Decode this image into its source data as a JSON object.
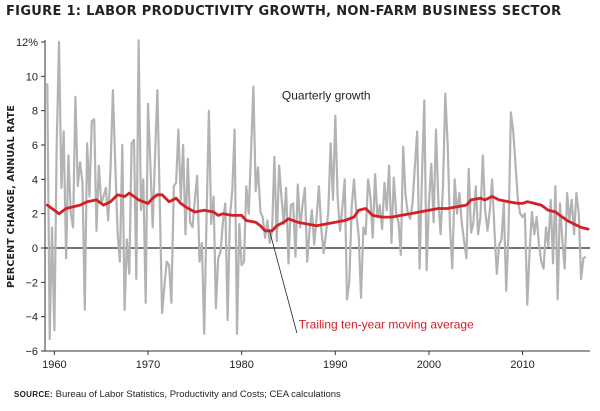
{
  "title": "FIGURE 1: LABOR PRODUCTIVITY GROWTH, NON-FARM BUSINESS SECTOR",
  "source_label": "SOURCE:",
  "source_text": "Bureau of Labor Statistics, Productivity and Costs; CEA calculations",
  "chart_data": {
    "type": "line",
    "title": "FIGURE 1: LABOR PRODUCTIVITY GROWTH, NON-FARM BUSINESS SECTOR",
    "xlabel": "",
    "ylabel": "PERCENT CHANGE, ANNUAL RATE",
    "xlim": [
      1959.0,
      2017.2
    ],
    "ylim": [
      -6,
      12
    ],
    "x_ticks": [
      1960,
      1970,
      1980,
      1990,
      2000,
      2010
    ],
    "x_tick_labels": [
      "1960",
      "1970",
      "1980",
      "1990",
      "2000",
      "2010"
    ],
    "y_ticks": [
      -6,
      -4,
      -2,
      0,
      2,
      4,
      6,
      8,
      10,
      12
    ],
    "y_tick_labels": [
      "−6",
      "−4",
      "−2",
      "0",
      "2",
      "4",
      "6",
      "8",
      "10",
      "12%"
    ],
    "grid": false,
    "zero_line": true,
    "series": [
      {
        "name": "Quarterly growth",
        "color": "#b3b3b3",
        "x_start": 1959.25,
        "x_step": 0.25,
        "values": [
          9.6,
          -5.3,
          1.2,
          -4.8,
          6.0,
          12.0,
          3.5,
          6.8,
          -0.6,
          5.4,
          2.0,
          1.2,
          8.8,
          3.6,
          5.0,
          3.8,
          -3.6,
          6.1,
          3.0,
          7.4,
          7.5,
          1.0,
          4.8,
          2.6,
          3.0,
          3.5,
          1.6,
          4.6,
          9.2,
          5.0,
          0.9,
          -0.8,
          6.0,
          -3.6,
          0.5,
          -1.5,
          6.1,
          6.3,
          -1.8,
          12.1,
          2.2,
          4.0,
          -3.2,
          8.4,
          5.0,
          1.2,
          5.3,
          9.2,
          2.8,
          -3.8,
          -2.2,
          -0.8,
          -1.0,
          -3.2,
          3.6,
          3.8,
          6.9,
          2.8,
          6.0,
          0.8,
          5.2,
          1.5,
          1.2,
          2.8,
          4.2,
          -0.8,
          0.3,
          -5.0,
          1.6,
          8.0,
          1.4,
          3.0,
          -3.5,
          -0.6,
          -0.2,
          1.5,
          2.6,
          -4.2,
          1.8,
          3.4,
          6.9,
          -5.0,
          1.4,
          -1.0,
          -0.8,
          3.6,
          2.0,
          5.5,
          9.4,
          3.3,
          4.7,
          2.1,
          1.8,
          0.6,
          1.6,
          0.3,
          1.0,
          5.3,
          0.4,
          4.8,
          3.0,
          1.4,
          3.5,
          -0.9,
          2.5,
          2.6,
          -0.5,
          3.7,
          1.2,
          2.5,
          3.5,
          -0.8,
          1.0,
          2.2,
          0.2,
          1.8,
          3.6,
          1.2,
          -0.3,
          0.8,
          2.1,
          6.1,
          2.8,
          7.7,
          3.0,
          1.0,
          2.3,
          4.0,
          -3.0,
          -2.0,
          2.4,
          4.0,
          2.0,
          0.7,
          -2.9,
          1.2,
          0.8,
          4.0,
          3.0,
          0.6,
          4.3,
          1.8,
          2.5,
          1.1,
          3.8,
          2.2,
          4.8,
          0.3,
          4.1,
          2.0,
          1.5,
          -0.4,
          5.9,
          3.1,
          2.0,
          1.7,
          2.6,
          4.8,
          6.8,
          -1.2,
          4.0,
          8.6,
          -1.3,
          2.6,
          4.9,
          1.5,
          6.9,
          2.8,
          0.8,
          3.6,
          9.0,
          6.0,
          1.2,
          -1.2,
          4.0,
          2.0,
          3.2,
          1.5,
          0.4,
          -0.6,
          4.6,
          0.9,
          1.5,
          3.6,
          0.8,
          1.8,
          5.4,
          2.2,
          1.0,
          2.2,
          4.0,
          1.0,
          -1.5,
          0.2,
          0.5,
          2.6,
          -2.5,
          0.9,
          7.9,
          6.8,
          4.8,
          2.8,
          2.0,
          1.8,
          2.0,
          -3.3,
          -0.2,
          2.1,
          0.8,
          1.8,
          0.2,
          -0.8,
          -1.2,
          1.2,
          0.1,
          2.8,
          -0.9,
          3.6,
          -3.0,
          2.6,
          0.4,
          -1.2,
          3.2,
          1.6,
          2.8,
          0.8,
          3.2,
          2.0,
          -1.8,
          -0.6,
          -0.5
        ]
      },
      {
        "name": "Trailing ten-year moving average",
        "color": "#d32027",
        "points": [
          [
            1959.25,
            2.5
          ],
          [
            1960.0,
            2.2
          ],
          [
            1960.5,
            2.0
          ],
          [
            1961.25,
            2.3
          ],
          [
            1962.0,
            2.4
          ],
          [
            1962.75,
            2.5
          ],
          [
            1963.5,
            2.7
          ],
          [
            1964.5,
            2.8
          ],
          [
            1965.25,
            2.5
          ],
          [
            1966.0,
            2.7
          ],
          [
            1966.75,
            3.1
          ],
          [
            1967.5,
            3.0
          ],
          [
            1968.0,
            3.2
          ],
          [
            1968.5,
            3.0
          ],
          [
            1969.0,
            2.8
          ],
          [
            1969.5,
            2.7
          ],
          [
            1970.0,
            2.6
          ],
          [
            1970.5,
            2.9
          ],
          [
            1971.0,
            3.1
          ],
          [
            1971.5,
            3.1
          ],
          [
            1972.25,
            2.7
          ],
          [
            1973.0,
            2.9
          ],
          [
            1973.5,
            2.6
          ],
          [
            1974.0,
            2.4
          ],
          [
            1975.0,
            2.1
          ],
          [
            1976.0,
            2.2
          ],
          [
            1977.0,
            2.1
          ],
          [
            1977.5,
            1.9
          ],
          [
            1978.0,
            2.0
          ],
          [
            1979.0,
            1.9
          ],
          [
            1980.0,
            1.9
          ],
          [
            1980.5,
            1.6
          ],
          [
            1981.5,
            1.5
          ],
          [
            1982.0,
            1.3
          ],
          [
            1982.5,
            1.0
          ],
          [
            1983.25,
            1.0
          ],
          [
            1983.75,
            1.3
          ],
          [
            1984.5,
            1.5
          ],
          [
            1985.0,
            1.7
          ],
          [
            1986.0,
            1.5
          ],
          [
            1987.0,
            1.4
          ],
          [
            1988.0,
            1.3
          ],
          [
            1989.0,
            1.4
          ],
          [
            1990.0,
            1.5
          ],
          [
            1991.0,
            1.6
          ],
          [
            1992.0,
            1.8
          ],
          [
            1992.5,
            2.2
          ],
          [
            1993.25,
            2.3
          ],
          [
            1994.0,
            1.9
          ],
          [
            1995.0,
            1.8
          ],
          [
            1996.0,
            1.8
          ],
          [
            1997.0,
            1.9
          ],
          [
            1998.0,
            2.0
          ],
          [
            1999.0,
            2.1
          ],
          [
            2000.0,
            2.2
          ],
          [
            2001.0,
            2.3
          ],
          [
            2002.0,
            2.3
          ],
          [
            2003.0,
            2.4
          ],
          [
            2004.0,
            2.5
          ],
          [
            2004.5,
            2.8
          ],
          [
            2005.5,
            2.9
          ],
          [
            2006.0,
            2.8
          ],
          [
            2006.75,
            3.0
          ],
          [
            2007.5,
            2.8
          ],
          [
            2008.5,
            2.7
          ],
          [
            2009.5,
            2.6
          ],
          [
            2010.0,
            2.6
          ],
          [
            2010.5,
            2.7
          ],
          [
            2011.25,
            2.6
          ],
          [
            2012.0,
            2.5
          ],
          [
            2012.75,
            2.2
          ],
          [
            2013.5,
            2.1
          ],
          [
            2014.0,
            1.9
          ],
          [
            2014.75,
            1.6
          ],
          [
            2015.5,
            1.4
          ],
          [
            2016.25,
            1.2
          ],
          [
            2017.0,
            1.1
          ]
        ]
      }
    ],
    "annotations": [
      {
        "text": "Quarterly growth",
        "color": "#222222"
      },
      {
        "text": "Trailing ten-year moving average",
        "color": "#d32027"
      }
    ]
  }
}
